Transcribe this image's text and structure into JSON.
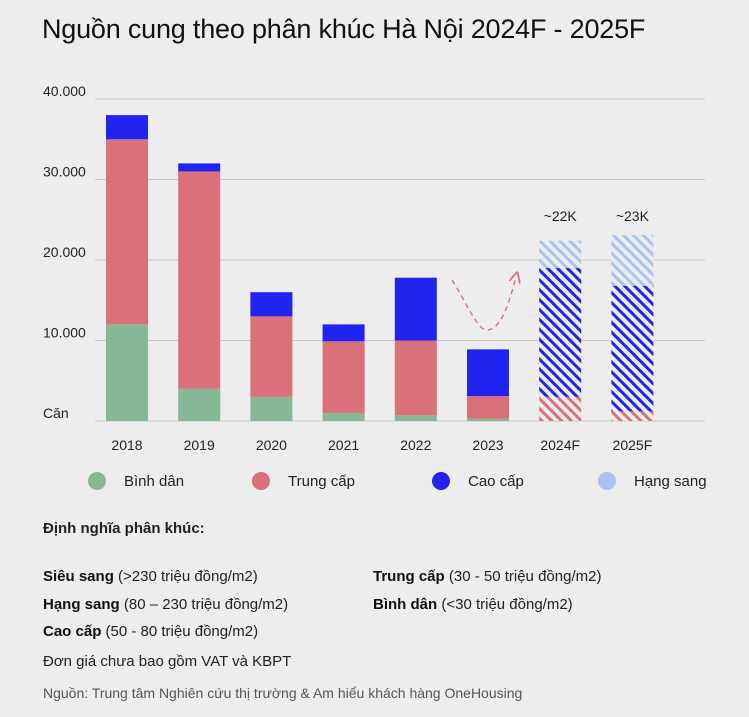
{
  "title": "Nguồn cung theo phân khúc Hà Nội 2024F - 2025F",
  "chart_data": {
    "type": "bar",
    "stacked": true,
    "categories": [
      "2018",
      "2019",
      "2020",
      "2021",
      "2022",
      "2023",
      "2024F",
      "2025F"
    ],
    "forecast_categories": [
      "2024F",
      "2025F"
    ],
    "series": [
      {
        "name": "Bình dân",
        "color": "#86b896",
        "values": [
          12000,
          4000,
          3000,
          1000,
          700,
          300,
          0,
          0
        ]
      },
      {
        "name": "Trung cấp",
        "color": "#d9707a",
        "values": [
          23000,
          27000,
          10000,
          8900,
          9300,
          2800,
          3000,
          1200
        ]
      },
      {
        "name": "Cao cấp",
        "color": "#2124ee",
        "values": [
          3000,
          1000,
          3000,
          2100,
          7800,
          5800,
          16000,
          15600
        ]
      },
      {
        "name": "Hạng sang",
        "color": "#a9c2f3",
        "values": [
          0,
          0,
          0,
          0,
          0,
          0,
          3400,
          6300
        ]
      }
    ],
    "totals_labels": {
      "2024F": "~22K",
      "2025F": "~23K"
    },
    "y_ticks": [
      0,
      10000,
      20000,
      30000,
      40000
    ],
    "y_tick_labels": [
      "Căn",
      "10.000",
      "20.000",
      "30.000",
      "40.000"
    ],
    "ylim": [
      0,
      40000
    ],
    "grid": true,
    "legend_position": "bottom"
  },
  "legend": [
    {
      "label": "Bình dân",
      "color": "#86b896"
    },
    {
      "label": "Trung cấp",
      "color": "#d9707a"
    },
    {
      "label": "Cao cấp",
      "color": "#2124ee"
    },
    {
      "label": "Hạng sang",
      "color": "#a9c2f3"
    }
  ],
  "definitions": {
    "heading": "Định nghĩa phân khúc:",
    "items": [
      {
        "name": "Siêu sang",
        "range": "(>230 triệu đồng/m2)"
      },
      {
        "name": "Trung cấp",
        "range": "(30 - 50 triệu đồng/m2)"
      },
      {
        "name": "Hạng sang",
        "range": "(80 – 230 triệu đồng/m2)"
      },
      {
        "name": "Bình dân",
        "range": "(<30 triệu đồng/m2)"
      },
      {
        "name": "Cao cấp",
        "range": "(50 - 80 triệu đồng/m2)"
      }
    ],
    "note": "Đơn giá chưa bao gồm VAT và KBPT"
  },
  "source": "Nguồn: Trung tâm Nghiên cứu thị trường & Am hiểu khách hàng OneHousing"
}
